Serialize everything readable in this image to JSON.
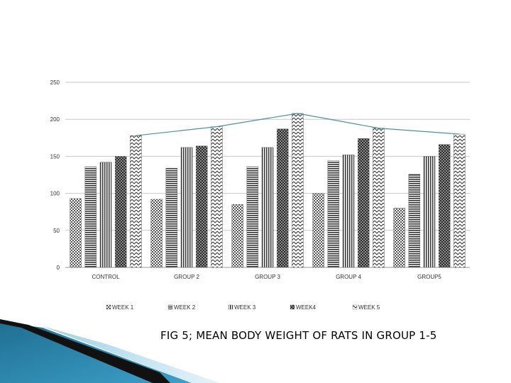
{
  "chart_data": {
    "type": "bar",
    "title": "",
    "xlabel": "",
    "ylabel": "",
    "ylim": [
      0,
      250
    ],
    "yticks": [
      0,
      50,
      100,
      150,
      200,
      250
    ],
    "grid": true,
    "legend_position": "bottom",
    "categories": [
      "CONTROL",
      "GROUP 2",
      "GROUP 3",
      "GROUP 4",
      "GROUP5"
    ],
    "series": [
      {
        "name": "WEEK 1",
        "values": [
          93,
          92,
          85,
          100,
          80
        ],
        "pattern": "checker"
      },
      {
        "name": "WEEK 2",
        "values": [
          136,
          134,
          136,
          144,
          126
        ],
        "pattern": "horizontal"
      },
      {
        "name": "WEEK 3",
        "values": [
          142,
          162,
          162,
          152,
          150
        ],
        "pattern": "vertical"
      },
      {
        "name": "WEEK4",
        "values": [
          150,
          164,
          187,
          174,
          166
        ],
        "pattern": "dots"
      },
      {
        "name": "WEEK 5",
        "values": [
          178,
          190,
          208,
          188,
          180
        ],
        "pattern": "zigzag"
      }
    ],
    "trend_line": {
      "series": "WEEK 5",
      "color": "#4a90a8"
    }
  },
  "caption": "FIG 5; MEAN BODY WEIGHT OF RATS IN GROUP 1-5"
}
